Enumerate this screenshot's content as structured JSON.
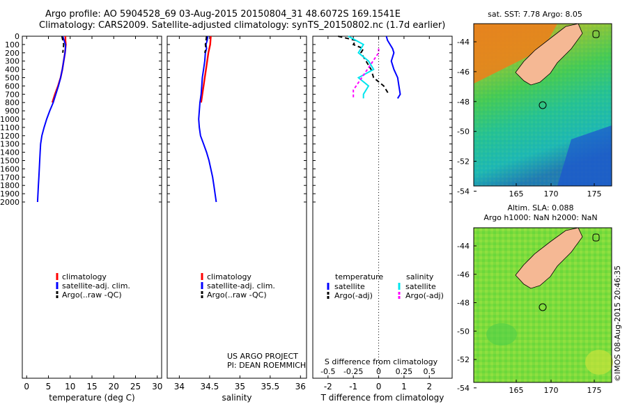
{
  "header": {
    "title_line1": "Argo profile: AO 5904528_69 03-Aug-2015 20150804_31 48.6072S 169.1541E",
    "title_line2": "Climatology: CARS2009. Satellite-adjusted climatology: synTS_20150802.nc (1.7d earlier)"
  },
  "colors": {
    "climatology": "#ff0000",
    "satellite": "#0000ff",
    "argo": "#000000",
    "sal_satellite": "#00e5ee",
    "sal_argo": "#ff00ff",
    "land": "#f5b894"
  },
  "legend_profile": {
    "climatology": "climatology",
    "satellite": "satellite-adj. clim.",
    "argo": "Argo(..raw -QC)"
  },
  "legend_diff": {
    "temperature": "temperature",
    "salinity": "salinity",
    "satellite": "satellite",
    "argo_adj": "Argo(-adj)"
  },
  "project": {
    "line1": "US ARGO PROJECT",
    "line2": "PI: DEAN ROEMMICH"
  },
  "maps": {
    "sst_title": "sat. SST: 7.78 Argo: 8.05",
    "sla_title1": "Altim. SLA: 0.088",
    "sla_title2": "Argo h1000: NaN h2000: NaN",
    "lat_ticks": [
      "-44",
      "-46",
      "-48",
      "-50",
      "-52",
      "-54"
    ],
    "lon_ticks": [
      "165",
      "170",
      "175"
    ],
    "timestamp": "©IMOS 08-Aug-2015 20:46:35"
  },
  "chart_data": [
    {
      "type": "line",
      "name": "temperature profile",
      "xlabel": "temperature (deg C)",
      "xlim": [
        -1,
        31
      ],
      "ylim": [
        2100,
        0
      ],
      "xticks": [
        "0",
        "5",
        "10",
        "15",
        "20",
        "25",
        "30"
      ],
      "yticks": [
        "0",
        "100",
        "200",
        "300",
        "400",
        "500",
        "600",
        "700",
        "800",
        "900",
        "1000",
        "1100",
        "1200",
        "1300",
        "1400",
        "1500",
        "1600",
        "1700",
        "1800",
        "1900",
        "2000"
      ],
      "series": [
        {
          "name": "climatology",
          "depth": [
            0,
            50,
            100,
            150,
            200,
            300,
            400,
            500,
            600,
            700,
            800
          ],
          "values": [
            8.9,
            8.9,
            9.0,
            8.9,
            8.8,
            8.5,
            8.2,
            7.8,
            7.2,
            6.5,
            5.9
          ]
        },
        {
          "name": "satellite-adj. clim.",
          "depth": [
            0,
            50,
            100,
            150,
            200,
            300,
            400,
            500,
            600,
            700,
            800,
            900,
            1000,
            1100,
            1200,
            1300,
            1400,
            1500,
            1600,
            1700,
            1800,
            1900,
            2000
          ],
          "values": [
            8.3,
            8.6,
            8.9,
            8.9,
            8.8,
            8.5,
            8.2,
            7.8,
            7.3,
            6.7,
            6.1,
            5.3,
            4.6,
            4.0,
            3.5,
            3.2,
            3.1,
            3.0,
            2.9,
            2.8,
            2.7,
            2.6,
            2.5
          ]
        },
        {
          "name": "Argo(..raw -QC)",
          "depth": [
            0,
            50,
            100,
            150,
            200
          ],
          "values": [
            8.1,
            8.3,
            8.5,
            8.4,
            8.3
          ]
        }
      ]
    },
    {
      "type": "line",
      "name": "salinity profile",
      "xlabel": "salinity",
      "xlim": [
        33.8,
        36.1
      ],
      "ylim": [
        2100,
        0
      ],
      "xticks": [
        "34",
        "34.5",
        "35",
        "35.5",
        "36"
      ],
      "series": [
        {
          "name": "climatology",
          "depth": [
            0,
            100,
            200,
            300,
            400,
            500,
            600,
            700,
            800
          ],
          "values": [
            34.52,
            34.51,
            34.48,
            34.46,
            34.44,
            34.42,
            34.4,
            34.38,
            34.36
          ]
        },
        {
          "name": "satellite-adj. clim.",
          "depth": [
            0,
            50,
            100,
            150,
            200,
            300,
            400,
            500,
            600,
            700,
            800,
            900,
            1000,
            1100,
            1200,
            1300,
            1400,
            1500,
            1600,
            1700,
            1800,
            1900,
            2000
          ],
          "values": [
            34.47,
            34.46,
            34.44,
            34.45,
            34.43,
            34.42,
            34.4,
            34.38,
            34.37,
            34.36,
            34.34,
            34.33,
            34.32,
            34.33,
            34.35,
            34.4,
            34.45,
            34.49,
            34.52,
            34.55,
            34.57,
            34.59,
            34.61
          ]
        },
        {
          "name": "Argo(..raw -QC)",
          "depth": [
            0,
            50,
            100,
            150,
            200
          ],
          "values": [
            34.45,
            34.44,
            34.43,
            34.44,
            34.42
          ]
        }
      ]
    },
    {
      "type": "line",
      "name": "difference from climatology",
      "xlabel": "T difference from climatology",
      "xlabel_top": "S difference from climatology",
      "xlim": [
        -2.6,
        2.9
      ],
      "ylim": [
        2100,
        0
      ],
      "xticks": [
        "-2",
        "-1",
        "0",
        "1",
        "2"
      ],
      "sticks": [
        "-0.5",
        "-0.25",
        "0",
        "0.25",
        "0.5"
      ],
      "series": [
        {
          "name": "temperature satellite",
          "depth": [
            0,
            50,
            100,
            150,
            200,
            300,
            400,
            500,
            600,
            700,
            750
          ],
          "values": [
            0.3,
            0.35,
            0.45,
            0.55,
            0.6,
            0.5,
            0.6,
            0.75,
            0.8,
            0.85,
            0.75
          ]
        },
        {
          "name": "temperature Argo(-adj)",
          "depth": [
            0,
            50,
            100,
            150,
            200,
            300,
            400,
            500,
            600,
            700
          ],
          "values": [
            -1.6,
            -0.9,
            -1.0,
            -0.6,
            -0.7,
            -0.5,
            -0.3,
            -0.2,
            0.2,
            0.4
          ]
        },
        {
          "name": "salinity satellite",
          "depth": [
            0,
            100,
            200,
            300,
            400,
            500,
            600,
            700,
            750
          ],
          "values": [
            -0.3,
            -0.15,
            -0.2,
            -0.1,
            -0.05,
            -0.2,
            -0.1,
            -0.15,
            -0.15
          ]
        },
        {
          "name": "salinity Argo(-adj)",
          "depth": [
            150,
            200,
            650,
            700,
            750
          ],
          "values": [
            0.0,
            0.0,
            -0.25,
            -0.25,
            -0.25
          ]
        }
      ]
    }
  ]
}
